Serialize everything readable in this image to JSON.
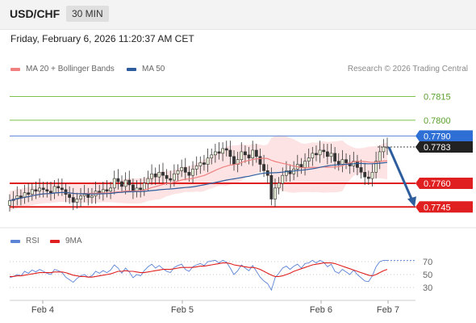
{
  "header": {
    "pair": "USD/CHF",
    "timeframe": "30 MIN"
  },
  "timestamp": "Friday, February 6, 2026 11:20:37 AM CET",
  "legend": {
    "ma20": {
      "label": "MA 20 + Bollinger Bands",
      "color": "#f08080"
    },
    "ma50": {
      "label": "MA 50",
      "color": "#2e5d9e"
    }
  },
  "credit": "Research © 2026 Trading Central",
  "rsi_legend": {
    "rsi": {
      "label": "RSI",
      "color": "#5b84d6"
    },
    "ma9": {
      "label": "9MA",
      "color": "#e02020"
    }
  },
  "chart_data": [
    {
      "type": "candlestick",
      "instrument": "USD/CHF",
      "timeframe": "30 MIN",
      "ylim": [
        0.7739,
        0.7825
      ],
      "x_ticks": [
        "Feb 4",
        "Feb 5",
        "Feb 6",
        "Feb 7"
      ],
      "levels": [
        {
          "value": "0.7815",
          "type": "resistance",
          "color": "#7cc24a"
        },
        {
          "value": "0.7800",
          "type": "resistance",
          "color": "#7cc24a"
        },
        {
          "value": "0.7790",
          "type": "pivot",
          "color": "#5b84d6"
        },
        {
          "value": "0.7783",
          "type": "last price",
          "color": "#222222"
        },
        {
          "value": "0.7760",
          "type": "support",
          "color": "#e02020"
        },
        {
          "value": "0.7745",
          "type": "support",
          "color": "#e02020"
        }
      ],
      "forecast_arrow": {
        "from": 0.7783,
        "to": 0.7745,
        "direction": "down"
      },
      "series": [
        {
          "name": "MA 20 + Bollinger Bands"
        },
        {
          "name": "MA 50"
        }
      ],
      "close": [
        0.7749,
        0.775,
        0.7752,
        0.7751,
        0.7754,
        0.7753,
        0.7756,
        0.7755,
        0.7757,
        0.7756,
        0.7755,
        0.7754,
        0.7758,
        0.7757,
        0.7756,
        0.7753,
        0.7751,
        0.7748,
        0.775,
        0.7752,
        0.7753,
        0.7751,
        0.7752,
        0.7755,
        0.7754,
        0.7756,
        0.7755,
        0.7757,
        0.7763,
        0.7761,
        0.7758,
        0.7762,
        0.7759,
        0.7755,
        0.7757,
        0.7756,
        0.776,
        0.7763,
        0.7766,
        0.7764,
        0.7767,
        0.7765,
        0.7763,
        0.7762,
        0.7766,
        0.7768,
        0.777,
        0.7767,
        0.7765,
        0.7769,
        0.7771,
        0.7773,
        0.7772,
        0.7776,
        0.7778,
        0.778,
        0.7779,
        0.7782,
        0.7781,
        0.7777,
        0.7772,
        0.7775,
        0.778,
        0.7778,
        0.7776,
        0.7781,
        0.7777,
        0.7772,
        0.7768,
        0.7765,
        0.775,
        0.7757,
        0.776,
        0.7765,
        0.7768,
        0.7766,
        0.7769,
        0.7772,
        0.777,
        0.7774,
        0.7776,
        0.7779,
        0.7778,
        0.7781,
        0.778,
        0.7777,
        0.7779,
        0.7774,
        0.7772,
        0.7775,
        0.7773,
        0.7771,
        0.7774,
        0.777,
        0.7767,
        0.7764,
        0.7763,
        0.7767,
        0.7774,
        0.778,
        0.7783,
        0.7783
      ],
      "rsi": [
        45,
        47,
        50,
        48,
        55,
        52,
        57,
        54,
        58,
        55,
        52,
        50,
        58,
        56,
        53,
        46,
        42,
        38,
        44,
        48,
        50,
        46,
        48,
        55,
        52,
        56,
        53,
        57,
        65,
        60,
        52,
        60,
        54,
        45,
        50,
        48,
        56,
        62,
        66,
        60,
        64,
        59,
        55,
        53,
        61,
        64,
        66,
        58,
        55,
        62,
        65,
        67,
        64,
        70,
        71,
        72,
        68,
        72,
        69,
        60,
        50,
        56,
        65,
        60,
        56,
        64,
        55,
        46,
        40,
        36,
        26,
        45,
        52,
        60,
        63,
        58,
        63,
        66,
        60,
        67,
        68,
        72,
        68,
        72,
        69,
        62,
        66,
        55,
        52,
        58,
        54,
        50,
        57,
        50,
        45,
        40,
        39,
        48,
        62,
        70,
        72,
        72
      ],
      "rsi_ma9": [
        47,
        47,
        48,
        48,
        49,
        50,
        51,
        52,
        53,
        53,
        53,
        53,
        54,
        54,
        54,
        53,
        51,
        49,
        48,
        47,
        47,
        46,
        46,
        47,
        48,
        49,
        50,
        51,
        53,
        55,
        55,
        56,
        55,
        55,
        54,
        53,
        53,
        54,
        55,
        56,
        57,
        58,
        58,
        58,
        59,
        60,
        61,
        61,
        61,
        61,
        62,
        63,
        63,
        64,
        65,
        66,
        67,
        68,
        68,
        67,
        65,
        64,
        63,
        62,
        61,
        61,
        60,
        58,
        55,
        52,
        49,
        47,
        47,
        48,
        50,
        52,
        55,
        57,
        59,
        61,
        63,
        65,
        66,
        67,
        68,
        68,
        68,
        67,
        65,
        63,
        61,
        59,
        57,
        55,
        53,
        51,
        49,
        48,
        50,
        53,
        56,
        58
      ],
      "rsi_levels": [
        "70",
        "50",
        "30"
      ]
    }
  ]
}
